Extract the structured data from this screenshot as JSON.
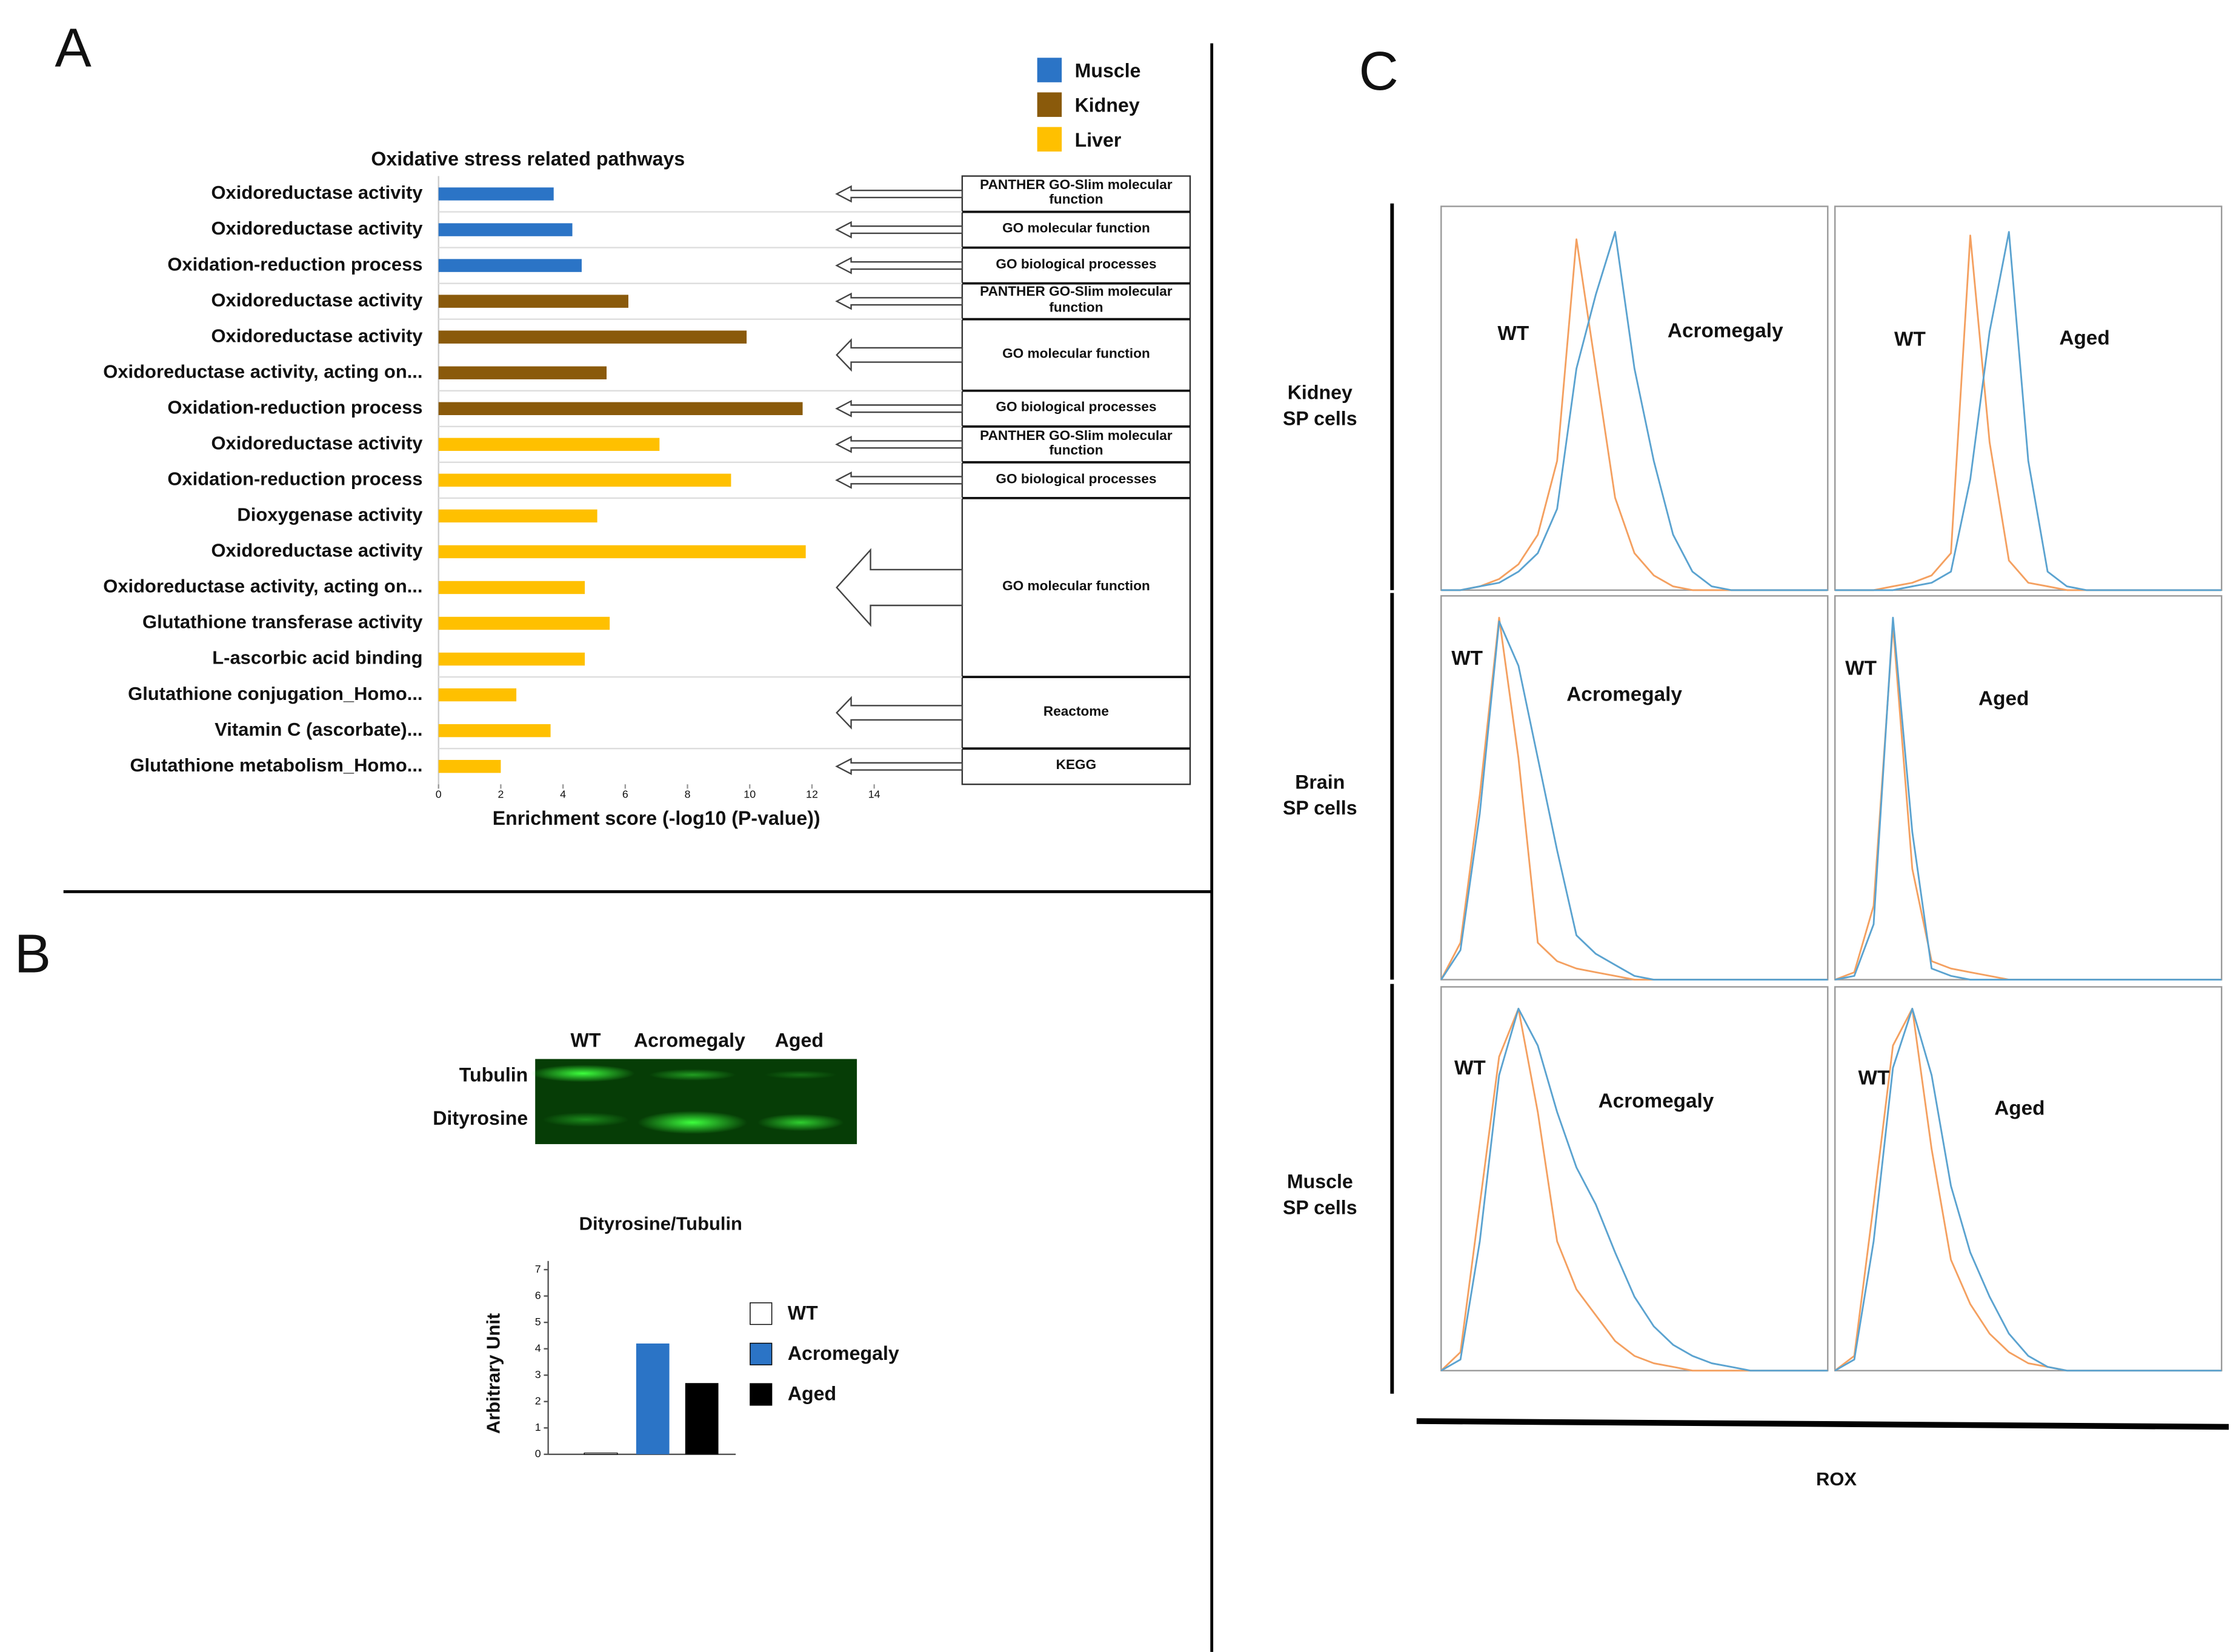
{
  "panel_labels": [
    "A",
    "B",
    "C"
  ],
  "blot": {
    "columns": [
      "WT",
      "Acromegaly",
      "Aged"
    ],
    "rows": [
      "Tubulin",
      "Dityrosine"
    ]
  },
  "chart_data": [
    {
      "type": "hbar",
      "title": "Oxidative stress related pathways",
      "xlabel": "Enrichment score (-log10 (P-value))",
      "categories": [
        "Oxidoreductase activity",
        "Oxidoreductase activity",
        "Oxidation-reduction process",
        "Oxidoreductase activity",
        "Oxidoreductase activity",
        "Oxidoreductase activity, acting on...",
        "Oxidation-reduction process",
        "Oxidoreductase activity",
        "Oxidation-reduction process",
        "Dioxygenase activity",
        "Oxidoreductase activity",
        "Oxidoreductase activity, acting on...",
        "Glutathione transferase activity",
        "L-ascorbic acid binding",
        "Glutathione conjugation_Homo...",
        "Vitamin C (ascorbate)...",
        "Glutathione metabolism_Homo..."
      ],
      "series": [
        {
          "name": "Muscle",
          "color": "#2b74c6",
          "values": [
            3.7,
            4.3,
            4.6,
            null,
            null,
            null,
            null,
            null,
            null,
            null,
            null,
            null,
            null,
            null,
            null,
            null,
            null
          ]
        },
        {
          "name": "Kidney",
          "color": "#8a5a0b",
          "values": [
            null,
            null,
            null,
            6.1,
            9.9,
            5.4,
            11.7,
            null,
            null,
            null,
            null,
            null,
            null,
            null,
            null,
            null,
            null
          ]
        },
        {
          "name": "Liver",
          "color": "#ffc000",
          "values": [
            null,
            null,
            null,
            null,
            null,
            null,
            null,
            7.1,
            9.4,
            5.1,
            11.8,
            4.7,
            5.5,
            4.7,
            2.5,
            3.6,
            2.0
          ]
        }
      ],
      "annotations": [
        "PANTHER GO-Slim molecular function",
        "GO molecular function",
        "GO biological processes",
        "PANTHER GO-Slim molecular function",
        "GO molecular function",
        "GO biological processes",
        "PANTHER GO-Slim molecular function",
        "GO biological processes",
        "GO molecular function",
        "Reactome",
        "KEGG"
      ],
      "xlim": [
        0,
        14
      ],
      "xticks": [
        0,
        2,
        4,
        6,
        8,
        10,
        12,
        14
      ]
    },
    {
      "type": "bar",
      "title": "Dityrosine/Tubulin",
      "ylabel": "Arbitrary Unit",
      "categories": [
        "WT",
        "Acromegaly",
        "Aged"
      ],
      "values": [
        0.05,
        4.2,
        2.7
      ],
      "colors": [
        "#ffffff",
        "#2b74c6",
        "#000000"
      ],
      "ylim": [
        0,
        7
      ],
      "yticks": [
        0,
        1,
        2,
        3,
        4,
        5,
        6,
        7
      ]
    },
    {
      "type": "density",
      "xlabel": "ROX",
      "row_labels": [
        [
          "Kidney",
          "SP cells"
        ],
        [
          "Brain",
          "SP cells"
        ],
        [
          "Muscle",
          "SP cells"
        ]
      ],
      "x": [
        0,
        5,
        10,
        15,
        20,
        25,
        30,
        35,
        40,
        45,
        50,
        55,
        60,
        65,
        70,
        75,
        80,
        85,
        90,
        95,
        100
      ],
      "xlim": [
        0,
        100
      ],
      "ylim": [
        0,
        100
      ],
      "panels": [
        {
          "series": [
            {
              "name": "WT",
              "color": "#f4a060",
              "values": [
                0,
                0,
                1,
                3,
                7,
                15,
                35,
                95,
                60,
                25,
                10,
                4,
                1,
                0,
                0,
                0,
                0,
                0,
                0,
                0,
                0
              ]
            },
            {
              "name": "Acromegaly",
              "color": "#5ba3d0",
              "values": [
                0,
                0,
                1,
                2,
                5,
                10,
                22,
                60,
                80,
                97,
                60,
                35,
                15,
                5,
                1,
                0,
                0,
                0,
                0,
                0,
                0
              ]
            }
          ]
        },
        {
          "series": [
            {
              "name": "WT",
              "color": "#f4a060",
              "values": [
                0,
                0,
                0,
                1,
                2,
                4,
                10,
                96,
                40,
                8,
                2,
                1,
                0,
                0,
                0,
                0,
                0,
                0,
                0,
                0,
                0
              ]
            },
            {
              "name": "Aged",
              "color": "#5ba3d0",
              "values": [
                0,
                0,
                0,
                0,
                1,
                2,
                5,
                30,
                70,
                97,
                35,
                5,
                1,
                0,
                0,
                0,
                0,
                0,
                0,
                0,
                0
              ]
            }
          ]
        },
        {
          "series": [
            {
              "name": "WT",
              "color": "#f4a060",
              "values": [
                0,
                10,
                50,
                98,
                60,
                10,
                5,
                3,
                2,
                1,
                0,
                0,
                0,
                0,
                0,
                0,
                0,
                0,
                0,
                0,
                0
              ]
            },
            {
              "name": "Acromegaly",
              "color": "#5ba3d0",
              "values": [
                0,
                8,
                45,
                97,
                85,
                60,
                35,
                12,
                7,
                4,
                1,
                0,
                0,
                0,
                0,
                0,
                0,
                0,
                0,
                0,
                0
              ]
            }
          ]
        },
        {
          "series": [
            {
              "name": "WT",
              "color": "#f4a060",
              "values": [
                0,
                2,
                20,
                96,
                30,
                5,
                3,
                2,
                1,
                0,
                0,
                0,
                0,
                0,
                0,
                0,
                0,
                0,
                0,
                0,
                0
              ]
            },
            {
              "name": "Aged",
              "color": "#5ba3d0",
              "values": [
                0,
                1,
                15,
                98,
                40,
                3,
                1,
                0,
                0,
                0,
                0,
                0,
                0,
                0,
                0,
                0,
                0,
                0,
                0,
                0,
                0
              ]
            }
          ]
        },
        {
          "series": [
            {
              "name": "WT",
              "color": "#f4a060",
              "values": [
                0,
                5,
                45,
                85,
                98,
                70,
                35,
                22,
                15,
                8,
                4,
                2,
                1,
                0,
                0,
                0,
                0,
                0,
                0,
                0,
                0
              ]
            },
            {
              "name": "Acromegaly",
              "color": "#5ba3d0",
              "values": [
                0,
                3,
                35,
                80,
                98,
                88,
                70,
                55,
                45,
                32,
                20,
                12,
                7,
                4,
                2,
                1,
                0,
                0,
                0,
                0,
                0
              ]
            }
          ]
        },
        {
          "series": [
            {
              "name": "WT",
              "color": "#f4a060",
              "values": [
                0,
                4,
                45,
                88,
                98,
                60,
                30,
                18,
                10,
                5,
                2,
                1,
                0,
                0,
                0,
                0,
                0,
                0,
                0,
                0,
                0
              ]
            },
            {
              "name": "Aged",
              "color": "#5ba3d0",
              "values": [
                0,
                3,
                35,
                82,
                98,
                80,
                50,
                32,
                20,
                10,
                4,
                1,
                0,
                0,
                0,
                0,
                0,
                0,
                0,
                0,
                0
              ]
            }
          ]
        }
      ]
    }
  ]
}
